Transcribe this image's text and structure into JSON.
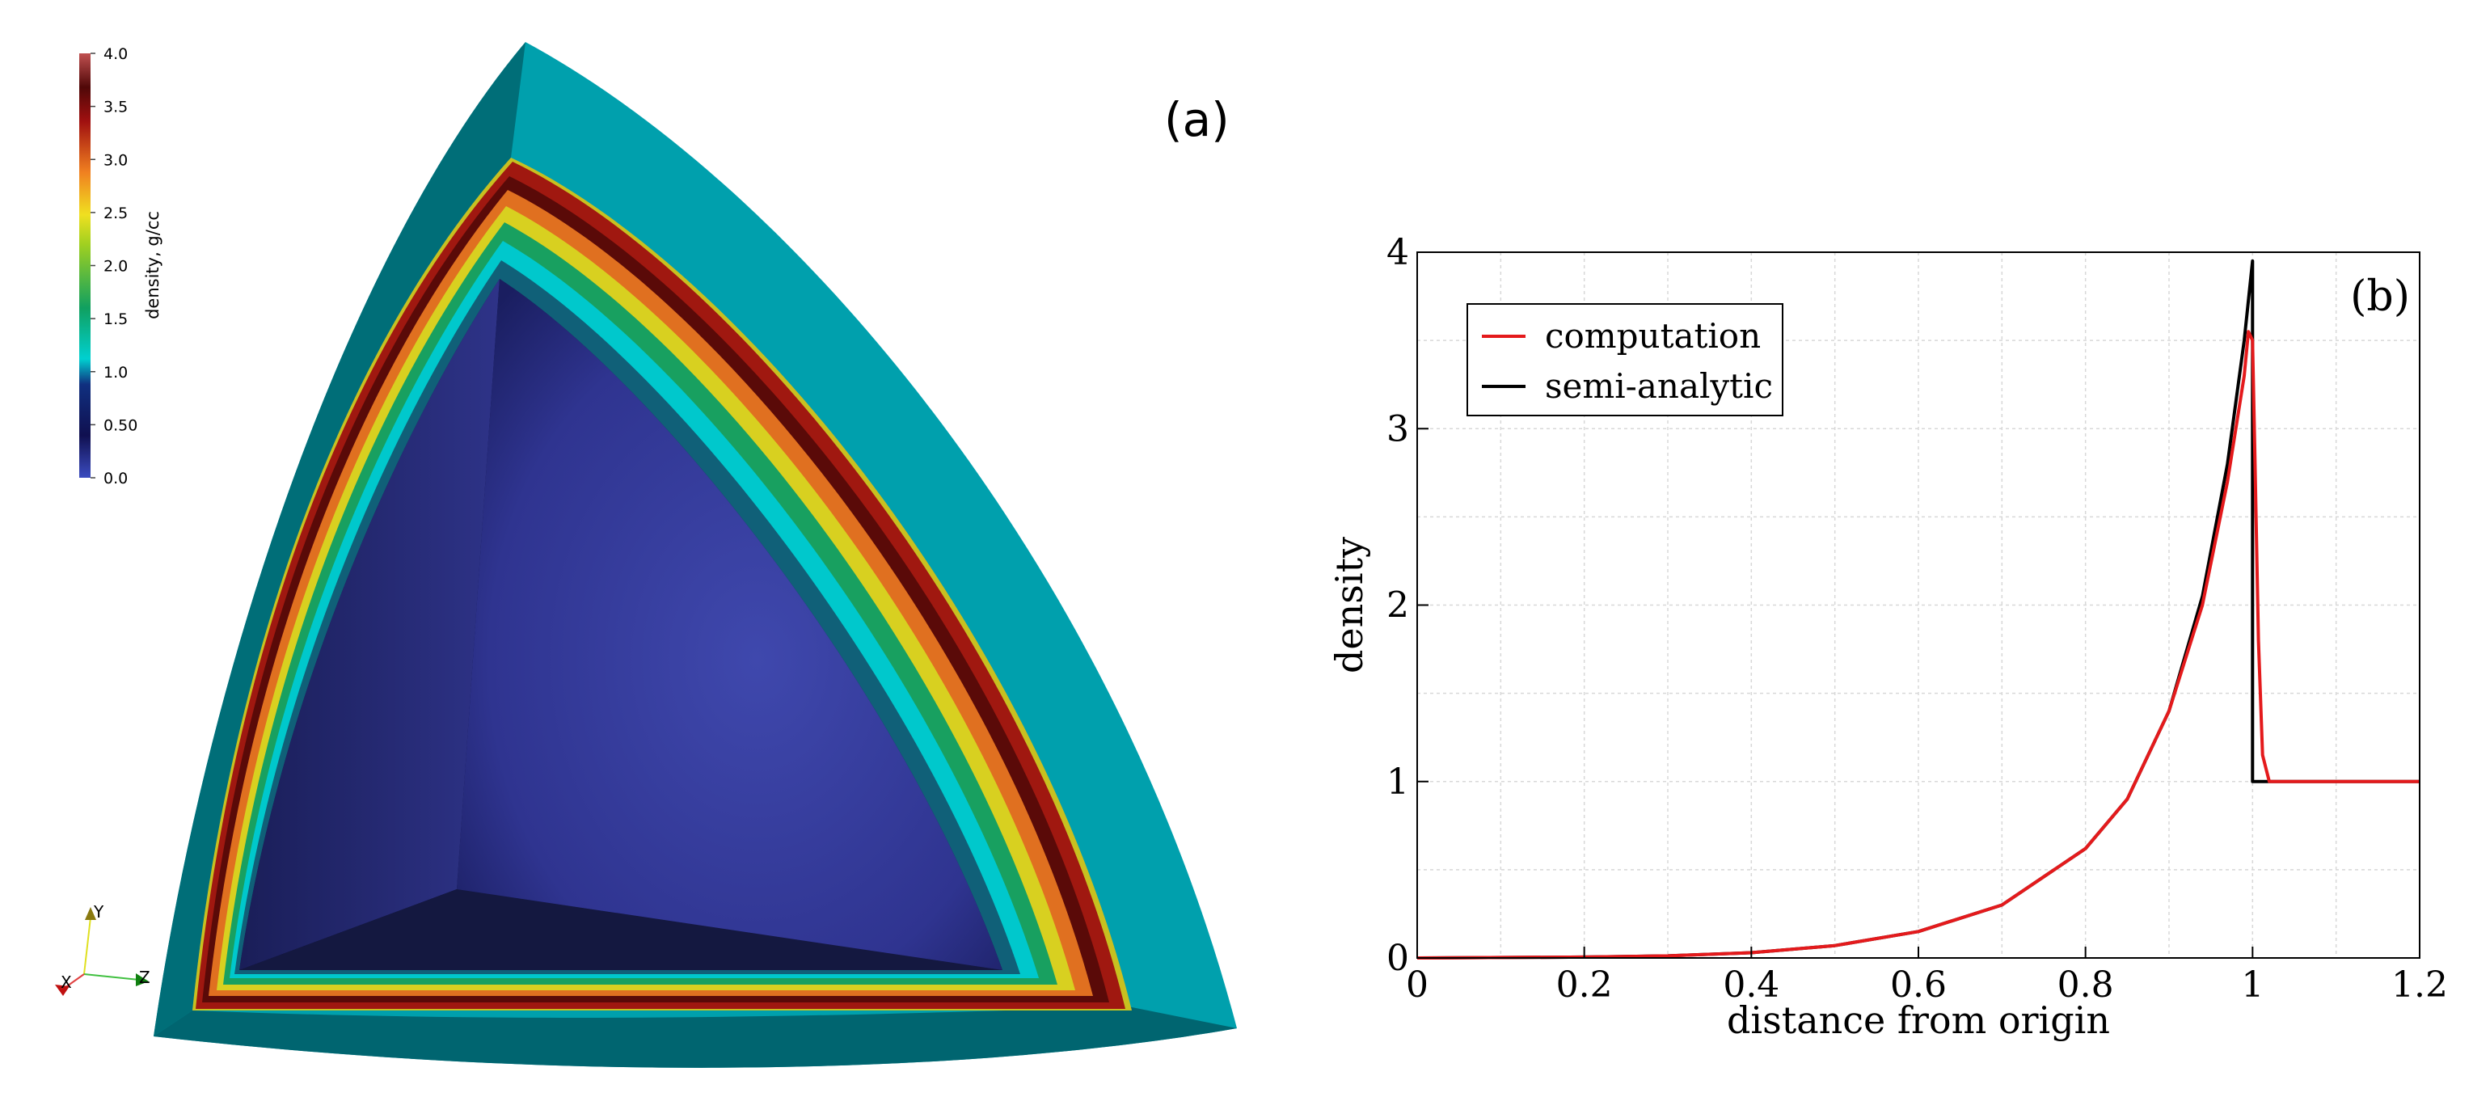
{
  "panel_a": {
    "label": "(a)",
    "colorbar": {
      "title": "density, g/cc",
      "ticks": [
        "4.0",
        "3.5",
        "3.0",
        "2.5",
        "2.0",
        "1.5",
        "1.0",
        "0.50",
        "0.0"
      ],
      "colors": [
        "#3b4cc0",
        "#151a5a",
        "#0a2a6a",
        "#00b3b3",
        "#00d0d0",
        "#1aa05a",
        "#80c020",
        "#f0e020",
        "#f09020",
        "#d04010",
        "#8a0a0a",
        "#c06060"
      ]
    },
    "axes_triad": {
      "x": "X",
      "y": "Y",
      "z": "Z"
    }
  },
  "chart_data": {
    "type": "line",
    "label": "(b)",
    "xlabel": "distance from origin",
    "ylabel": "density",
    "xlim": [
      0,
      1.2
    ],
    "ylim": [
      0,
      4
    ],
    "xticks": [
      "0",
      "0.2",
      "0.4",
      "0.6",
      "0.8",
      "1",
      "1.2"
    ],
    "yticks": [
      "0",
      "1",
      "2",
      "3",
      "4"
    ],
    "grid": true,
    "legend_position": "top-left",
    "series": [
      {
        "name": "computation",
        "color": "#e41a1c",
        "x": [
          0,
          0.2,
          0.3,
          0.4,
          0.5,
          0.6,
          0.7,
          0.8,
          0.85,
          0.9,
          0.94,
          0.97,
          0.99,
          0.995,
          1.0,
          1.003,
          1.007,
          1.012,
          1.02,
          1.1,
          1.2
        ],
        "y": [
          0,
          0.005,
          0.012,
          0.03,
          0.07,
          0.15,
          0.3,
          0.62,
          0.9,
          1.4,
          2.0,
          2.7,
          3.3,
          3.55,
          3.5,
          2.8,
          1.8,
          1.15,
          1.0,
          1.0,
          1.0
        ]
      },
      {
        "name": "semi-analytic",
        "color": "#000000",
        "x": [
          0,
          0.2,
          0.3,
          0.4,
          0.5,
          0.6,
          0.7,
          0.8,
          0.85,
          0.9,
          0.94,
          0.97,
          0.99,
          1.0,
          1.0,
          1.2
        ],
        "y": [
          0,
          0.005,
          0.012,
          0.03,
          0.07,
          0.15,
          0.3,
          0.62,
          0.9,
          1.4,
          2.05,
          2.8,
          3.5,
          3.95,
          1.0,
          1.0
        ]
      }
    ]
  }
}
